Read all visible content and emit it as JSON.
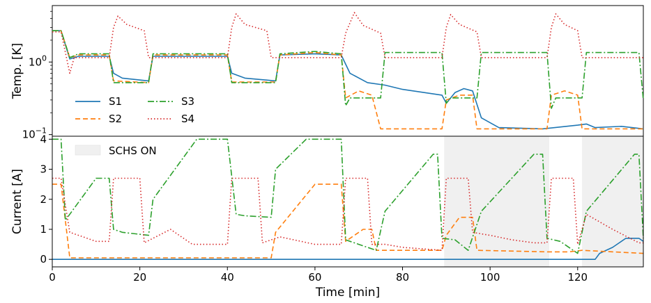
{
  "chart_data": [
    {
      "type": "line",
      "panel": "top",
      "ylabel": "Temp. [K]",
      "yscale": "log",
      "ylim": [
        0.095,
        6.0
      ],
      "xlim": [
        0,
        135
      ],
      "yticks": [
        {
          "value": 1.0,
          "label": "10^0",
          "base": "10",
          "exp": "0"
        },
        {
          "value": 0.1,
          "label": "10^-1",
          "base": "10",
          "exp": "−1"
        }
      ],
      "legend": {
        "position": "lower-left",
        "columns": 2
      },
      "series": [
        {
          "name": "S1",
          "color": "#1f77b4",
          "dash": "solid",
          "points": [
            [
              0,
              2.7
            ],
            [
              2,
              2.7
            ],
            [
              4,
              1.1
            ],
            [
              6,
              1.2
            ],
            [
              13,
              1.2
            ],
            [
              14,
              0.7
            ],
            [
              16,
              0.6
            ],
            [
              22,
              0.55
            ],
            [
              23,
              1.2
            ],
            [
              40,
              1.2
            ],
            [
              41,
              0.7
            ],
            [
              44,
              0.6
            ],
            [
              51,
              0.55
            ],
            [
              52,
              1.25
            ],
            [
              60,
              1.3
            ],
            [
              66,
              1.25
            ],
            [
              68,
              0.7
            ],
            [
              72,
              0.52
            ],
            [
              76,
              0.48
            ],
            [
              80,
              0.42
            ],
            [
              89,
              0.35
            ],
            [
              90,
              0.27
            ],
            [
              92,
              0.38
            ],
            [
              94,
              0.43
            ],
            [
              96,
              0.4
            ],
            [
              98,
              0.17
            ],
            [
              102,
              0.125
            ],
            [
              112,
              0.12
            ],
            [
              120,
              0.135
            ],
            [
              122,
              0.14
            ],
            [
              124,
              0.125
            ],
            [
              130,
              0.13
            ],
            [
              135,
              0.12
            ]
          ]
        },
        {
          "name": "S2",
          "color": "#ff7f0e",
          "dash": "dashed",
          "points": [
            [
              0,
              2.7
            ],
            [
              2,
              2.7
            ],
            [
              4,
              1.15
            ],
            [
              6,
              1.25
            ],
            [
              13,
              1.25
            ],
            [
              14,
              0.55
            ],
            [
              22,
              0.52
            ],
            [
              23,
              1.25
            ],
            [
              40,
              1.25
            ],
            [
              41,
              0.53
            ],
            [
              51,
              0.53
            ],
            [
              52,
              1.25
            ],
            [
              60,
              1.35
            ],
            [
              66,
              1.25
            ],
            [
              67,
              0.32
            ],
            [
              70,
              0.4
            ],
            [
              73,
              0.35
            ],
            [
              75,
              0.12
            ],
            [
              89,
              0.12
            ],
            [
              90,
              0.3
            ],
            [
              93,
              0.35
            ],
            [
              96,
              0.35
            ],
            [
              97,
              0.12
            ],
            [
              113,
              0.12
            ],
            [
              114,
              0.35
            ],
            [
              117,
              0.4
            ],
            [
              120,
              0.35
            ],
            [
              121,
              0.12
            ],
            [
              135,
              0.12
            ]
          ]
        },
        {
          "name": "S3",
          "color": "#2ca02c",
          "dash": "dashdot",
          "points": [
            [
              0,
              2.7
            ],
            [
              2,
              2.7
            ],
            [
              4,
              1.15
            ],
            [
              6,
              1.3
            ],
            [
              13,
              1.3
            ],
            [
              14,
              0.52
            ],
            [
              22,
              0.52
            ],
            [
              23,
              1.3
            ],
            [
              40,
              1.3
            ],
            [
              41,
              0.52
            ],
            [
              51,
              0.52
            ],
            [
              52,
              1.3
            ],
            [
              60,
              1.4
            ],
            [
              66,
              1.3
            ],
            [
              67,
              0.25
            ],
            [
              68,
              0.32
            ],
            [
              75,
              0.32
            ],
            [
              76,
              1.35
            ],
            [
              89,
              1.35
            ],
            [
              90,
              0.27
            ],
            [
              91,
              0.32
            ],
            [
              97,
              0.32
            ],
            [
              98,
              1.35
            ],
            [
              113,
              1.35
            ],
            [
              114,
              0.23
            ],
            [
              115,
              0.32
            ],
            [
              121,
              0.32
            ],
            [
              122,
              1.35
            ],
            [
              134,
              1.35
            ],
            [
              135,
              0.3
            ]
          ]
        },
        {
          "name": "S4",
          "color": "#d62728",
          "dash": "dotted",
          "points": [
            [
              0,
              2.6
            ],
            [
              2,
              2.6
            ],
            [
              4,
              0.7
            ],
            [
              5,
              1.15
            ],
            [
              13,
              1.15
            ],
            [
              14,
              3.0
            ],
            [
              15,
              4.3
            ],
            [
              17,
              3.3
            ],
            [
              21,
              2.7
            ],
            [
              22,
              1.15
            ],
            [
              40,
              1.15
            ],
            [
              41,
              3.0
            ],
            [
              42,
              4.6
            ],
            [
              44,
              3.3
            ],
            [
              49,
              2.7
            ],
            [
              50,
              1.15
            ],
            [
              66,
              1.15
            ],
            [
              67,
              2.5
            ],
            [
              69,
              4.8
            ],
            [
              71,
              3.2
            ],
            [
              75,
              2.5
            ],
            [
              76,
              1.15
            ],
            [
              89,
              1.15
            ],
            [
              90,
              3.0
            ],
            [
              91,
              4.5
            ],
            [
              93,
              3.3
            ],
            [
              97,
              2.6
            ],
            [
              98,
              1.15
            ],
            [
              113,
              1.15
            ],
            [
              114,
              3.0
            ],
            [
              115,
              4.6
            ],
            [
              117,
              3.3
            ],
            [
              120,
              2.7
            ],
            [
              121,
              1.15
            ],
            [
              135,
              1.15
            ]
          ]
        }
      ]
    },
    {
      "type": "line",
      "panel": "bottom",
      "xlabel": "Time [min]",
      "ylabel": "Current [A]",
      "xlim": [
        0,
        135
      ],
      "ylim": [
        -0.25,
        4.1
      ],
      "xticks": [
        0,
        20,
        40,
        60,
        80,
        100,
        120
      ],
      "yticks": [
        0,
        1,
        2,
        3,
        4
      ],
      "shaded_regions": [
        {
          "label": "SCHS ON",
          "start": 89.5,
          "end": 113.5
        },
        {
          "label": "SCHS ON",
          "start": 121,
          "end": 135
        }
      ],
      "shade_legend": "SCHS ON",
      "shade_color": "#f0f0f0",
      "series": [
        {
          "name": "S1",
          "color": "#1f77b4",
          "dash": "solid",
          "points": [
            [
              0,
              0
            ],
            [
              124,
              0
            ],
            [
              125,
              0.2
            ],
            [
              128,
              0.4
            ],
            [
              131,
              0.7
            ],
            [
              134,
              0.7
            ],
            [
              135,
              0.6
            ]
          ]
        },
        {
          "name": "S2",
          "color": "#ff7f0e",
          "dash": "dashed",
          "points": [
            [
              0,
              2.5
            ],
            [
              2,
              2.5
            ],
            [
              4,
              0.05
            ],
            [
              50,
              0.05
            ],
            [
              51,
              0.9
            ],
            [
              60,
              2.5
            ],
            [
              66,
              2.5
            ],
            [
              67,
              0.6
            ],
            [
              71,
              1.0
            ],
            [
              73,
              1.0
            ],
            [
              74,
              0.3
            ],
            [
              89,
              0.3
            ],
            [
              90,
              0.8
            ],
            [
              93,
              1.4
            ],
            [
              96,
              1.4
            ],
            [
              97,
              0.3
            ],
            [
              113,
              0.25
            ],
            [
              114,
              0.25
            ],
            [
              118,
              0.25
            ],
            [
              121,
              0.3
            ],
            [
              135,
              0.2
            ]
          ]
        },
        {
          "name": "S3",
          "color": "#2ca02c",
          "dash": "dashdot",
          "points": [
            [
              0,
              4.0
            ],
            [
              2,
              4.0
            ],
            [
              3,
              1.3
            ],
            [
              10,
              2.7
            ],
            [
              13,
              2.7
            ],
            [
              14,
              1.0
            ],
            [
              16,
              0.9
            ],
            [
              22,
              0.8
            ],
            [
              23,
              2.0
            ],
            [
              33,
              4.0
            ],
            [
              40,
              4.0
            ],
            [
              42,
              1.5
            ],
            [
              44,
              1.45
            ],
            [
              50,
              1.4
            ],
            [
              51,
              3.0
            ],
            [
              58,
              4.0
            ],
            [
              66,
              4.0
            ],
            [
              67,
              0.65
            ],
            [
              70,
              0.5
            ],
            [
              74,
              0.3
            ],
            [
              76,
              1.6
            ],
            [
              87,
              3.5
            ],
            [
              88,
              3.5
            ],
            [
              89,
              0.7
            ],
            [
              92,
              0.65
            ],
            [
              95,
              0.3
            ],
            [
              98,
              1.6
            ],
            [
              110,
              3.5
            ],
            [
              112,
              3.5
            ],
            [
              113,
              0.7
            ],
            [
              116,
              0.6
            ],
            [
              120,
              0.2
            ],
            [
              122,
              1.6
            ],
            [
              133,
              3.5
            ],
            [
              134,
              3.5
            ],
            [
              135,
              0.7
            ]
          ]
        },
        {
          "name": "S4",
          "color": "#d62728",
          "dash": "dotted",
          "points": [
            [
              0,
              2.7
            ],
            [
              2,
              2.7
            ],
            [
              4,
              0.9
            ],
            [
              6,
              0.8
            ],
            [
              10,
              0.6
            ],
            [
              13,
              0.6
            ],
            [
              14,
              2.7
            ],
            [
              20,
              2.7
            ],
            [
              21,
              0.55
            ],
            [
              27,
              1.0
            ],
            [
              32,
              0.5
            ],
            [
              40,
              0.5
            ],
            [
              41,
              2.7
            ],
            [
              47,
              2.7
            ],
            [
              48,
              0.55
            ],
            [
              52,
              0.75
            ],
            [
              60,
              0.5
            ],
            [
              66,
              0.5
            ],
            [
              67,
              2.7
            ],
            [
              72,
              2.7
            ],
            [
              73,
              0.5
            ],
            [
              76,
              0.5
            ],
            [
              80,
              0.4
            ],
            [
              89,
              0.3
            ],
            [
              90,
              2.7
            ],
            [
              95,
              2.7
            ],
            [
              96,
              0.9
            ],
            [
              100,
              0.8
            ],
            [
              105,
              0.65
            ],
            [
              110,
              0.55
            ],
            [
              113,
              0.55
            ],
            [
              114,
              2.7
            ],
            [
              119,
              2.7
            ],
            [
              120,
              0.5
            ],
            [
              122,
              1.5
            ],
            [
              128,
              1.0
            ],
            [
              134,
              0.55
            ],
            [
              135,
              0.55
            ]
          ]
        }
      ]
    }
  ]
}
